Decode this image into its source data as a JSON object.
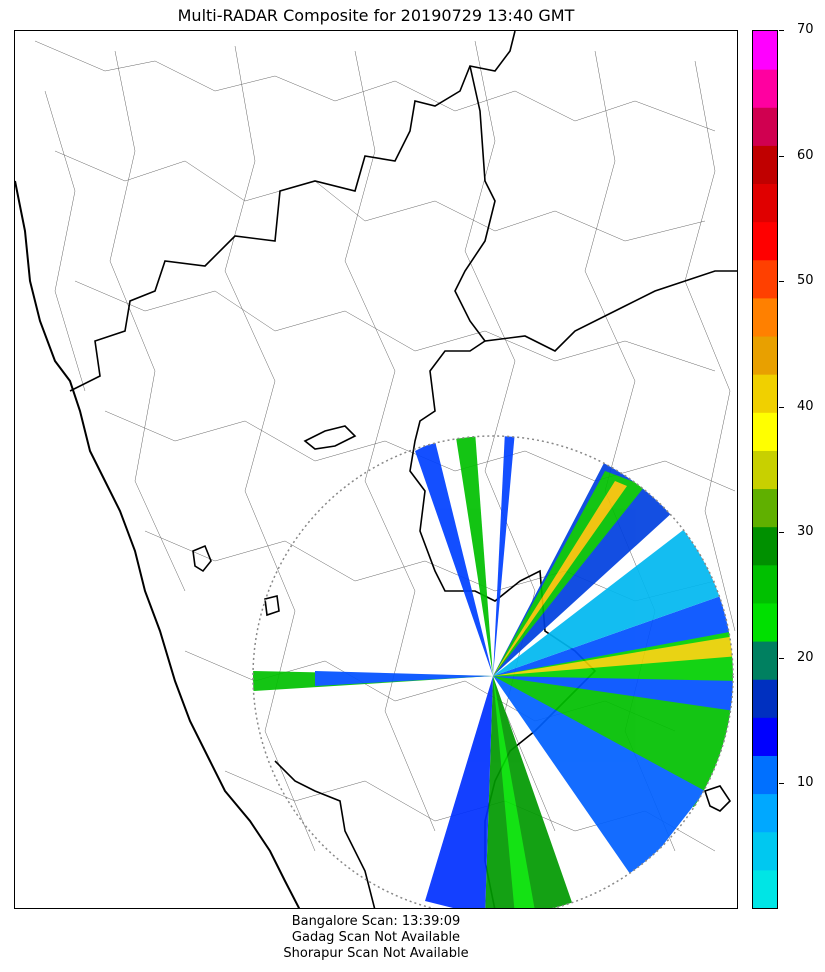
{
  "title": "Multi-RADAR Composite for 20190729 13:40 GMT",
  "colorbar": {
    "min": 0,
    "max": 70,
    "ticks": [
      {
        "value": 10,
        "label": "10"
      },
      {
        "value": 20,
        "label": "20"
      },
      {
        "value": 30,
        "label": "30"
      },
      {
        "value": 40,
        "label": "40"
      },
      {
        "value": 50,
        "label": "50"
      },
      {
        "value": 60,
        "label": "60"
      },
      {
        "value": 70,
        "label": "70"
      }
    ],
    "colors": [
      "#00e5e5",
      "#00c8f0",
      "#00a8ff",
      "#0070ff",
      "#0000ff",
      "#0030c0",
      "#008060",
      "#00e000",
      "#00c000",
      "#009000",
      "#60b000",
      "#c8d000",
      "#ffff00",
      "#f0d000",
      "#e8a000",
      "#ff8000",
      "#ff4000",
      "#ff0000",
      "#e00000",
      "#c00000",
      "#d00050",
      "#ff00a0",
      "#ff00ff"
    ]
  },
  "status": {
    "line1": "Bangalore Scan: 13:39:09",
    "line2": "Gadag Scan Not Available",
    "line3": "Shorapur Scan Not Available"
  }
}
